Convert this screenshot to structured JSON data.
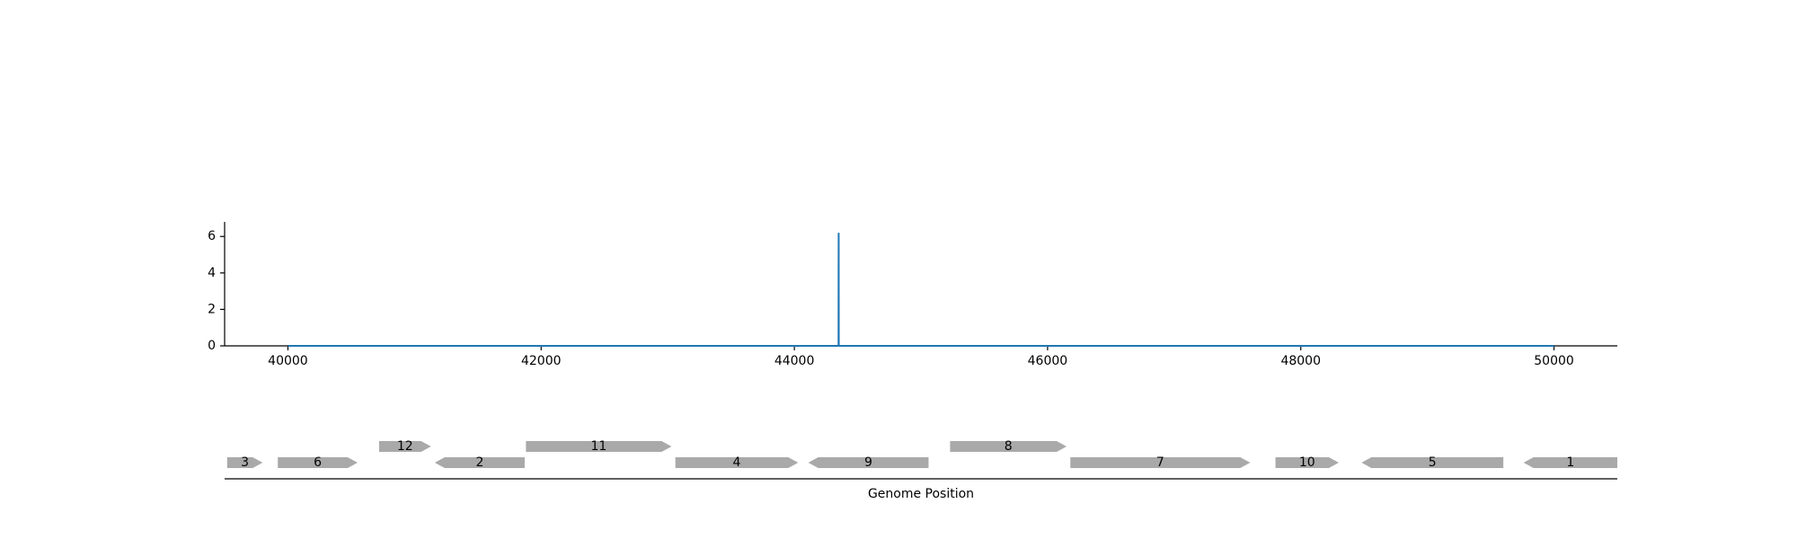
{
  "chart_data": [
    {
      "type": "line",
      "title": "",
      "xlabel": "",
      "ylabel": "",
      "xlim": [
        39500,
        50500
      ],
      "ylim": [
        0,
        6.8
      ],
      "xticks": [
        40000,
        42000,
        44000,
        46000,
        48000,
        50000
      ],
      "yticks": [
        0,
        2,
        4,
        6
      ],
      "series": [
        {
          "color": "#1f77b4",
          "x": [
            40000,
            44349,
            44350,
            44351,
            50000
          ],
          "y": [
            0,
            0,
            6.2,
            0,
            0
          ]
        }
      ],
      "grid": false
    },
    {
      "type": "gene-track",
      "xlabel": "Genome Position",
      "xlim": [
        39500,
        50500
      ],
      "gene_color": "#a9a9a9",
      "genes": [
        {
          "label": "3",
          "start": 39520,
          "end": 39800,
          "strand": "+",
          "level": 0
        },
        {
          "label": "6",
          "start": 39920,
          "end": 40550,
          "strand": "+",
          "level": 0
        },
        {
          "label": "12",
          "start": 40720,
          "end": 41130,
          "strand": "+",
          "level": 1
        },
        {
          "label": "2",
          "start": 41160,
          "end": 41870,
          "strand": "-",
          "level": 0
        },
        {
          "label": "11",
          "start": 41880,
          "end": 43030,
          "strand": "+",
          "level": 1
        },
        {
          "label": "4",
          "start": 43060,
          "end": 44030,
          "strand": "+",
          "level": 0
        },
        {
          "label": "9",
          "start": 44110,
          "end": 45060,
          "strand": "-",
          "level": 0
        },
        {
          "label": "8",
          "start": 45230,
          "end": 46150,
          "strand": "+",
          "level": 1
        },
        {
          "label": "7",
          "start": 46180,
          "end": 47600,
          "strand": "+",
          "level": 0
        },
        {
          "label": "10",
          "start": 47800,
          "end": 48300,
          "strand": "+",
          "level": 0
        },
        {
          "label": "5",
          "start": 48480,
          "end": 49600,
          "strand": "-",
          "level": 0
        },
        {
          "label": "1",
          "start": 49760,
          "end": 50500,
          "strand": "-",
          "level": 0
        }
      ]
    }
  ]
}
